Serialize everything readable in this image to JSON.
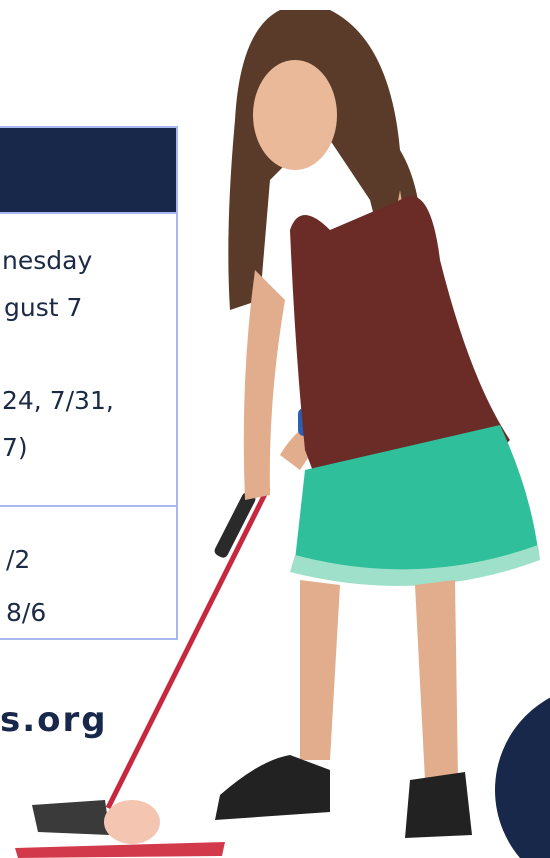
{
  "table": {
    "rows": [
      [
        "nesday",
        "gust 7",
        "24, 7/31,",
        "7)"
      ],
      [
        "/2",
        "8/6"
      ]
    ]
  },
  "footer": {
    "url": "s.org"
  }
}
